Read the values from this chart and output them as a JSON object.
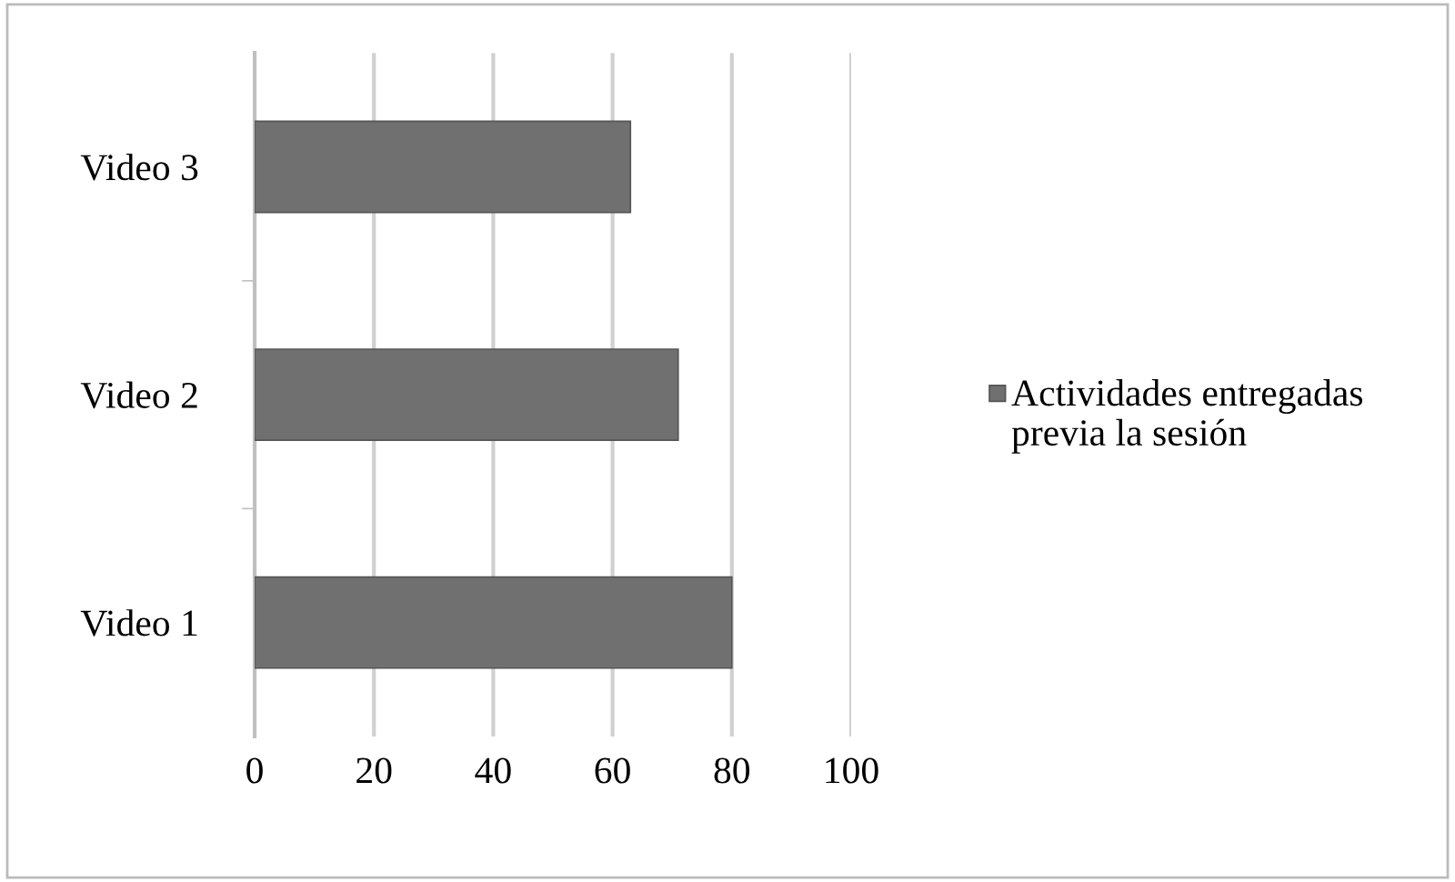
{
  "chart_data": {
    "type": "bar",
    "orientation": "horizontal",
    "categories": [
      "Video 3",
      "Video 2",
      "Video 1"
    ],
    "series": [
      {
        "name": "Actividades entregadas previa la sesión",
        "color": "#707070",
        "values": [
          63,
          71,
          80
        ]
      }
    ],
    "xlim": [
      0,
      100
    ],
    "xticks": [
      0,
      20,
      40,
      60,
      80,
      100
    ],
    "grid": "x",
    "legend": "right"
  }
}
